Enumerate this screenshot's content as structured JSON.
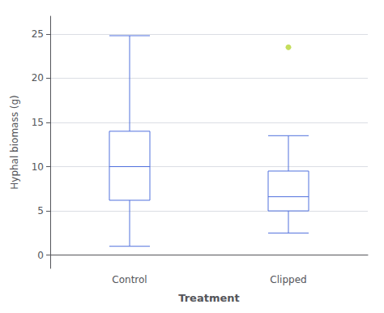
{
  "chart_data": {
    "type": "boxplot",
    "categories": [
      "Control",
      "Clipped"
    ],
    "values": [
      {
        "low": 1.0,
        "q1": 6.2,
        "median": 10.0,
        "q3": 14.0,
        "high": 24.8
      },
      {
        "low": 2.5,
        "q1": 5.0,
        "median": 6.6,
        "q3": 9.5,
        "high": 13.5
      }
    ],
    "outliers": [
      [],
      [
        23.5
      ]
    ],
    "xlabel": "Treatment",
    "ylabel": "Hyphal biomass (g)",
    "ylim": [
      -1.5,
      27
    ],
    "yticks": [
      0,
      5,
      10,
      15,
      20,
      25
    ],
    "grid": true
  }
}
